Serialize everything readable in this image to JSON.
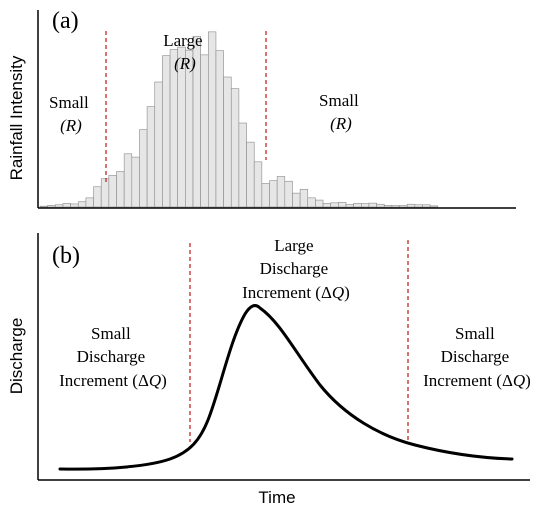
{
  "panel_a": {
    "tag": "(a)",
    "ylabel": "Rainfall Intensity",
    "left_label": [
      "Small",
      "(R)"
    ],
    "center_label": [
      "Large",
      "(R)"
    ],
    "right_label": [
      "Small",
      "(R)"
    ],
    "bars": [
      0.3,
      0.6,
      0.8,
      1.3,
      1.1,
      1.9,
      3.3,
      7.3,
      10.2,
      11.4,
      12.8,
      19.2,
      18.0,
      27.9,
      36.2,
      45.1,
      54.6,
      56.8,
      57.7,
      56.6,
      61.6,
      54.9,
      63.2,
      56.4,
      46.9,
      42.7,
      30.3,
      23.4,
      16.3,
      8.5,
      9.5,
      11.0,
      9.3,
      5.0,
      6.4,
      3.3,
      2.5,
      1.3,
      1.5,
      1.7,
      0.9,
      1.3,
      1.2,
      1.4,
      1.0,
      0.6,
      0.5,
      0.5,
      1.0,
      0.8,
      0.8,
      0.4
    ],
    "bar_max": 70,
    "split_index_left": 8,
    "split_index_right": 27,
    "bar_fill": "#e6e6e6",
    "bar_stroke": "#8a8a8a",
    "divider_color": "#c0282a"
  },
  "panel_b": {
    "tag": "(b)",
    "ylabel": "Discharge",
    "xlabel": "Time",
    "left_label": [
      "Small",
      "Discharge",
      "Increment (ΔQ)"
    ],
    "center_label": [
      "Large",
      "Discharge",
      "Increment (ΔQ)"
    ],
    "right_label": [
      "Small",
      "Discharge",
      "Increment (ΔQ)"
    ],
    "curve_color": "#000000",
    "divider_color": "#c0282a"
  }
}
